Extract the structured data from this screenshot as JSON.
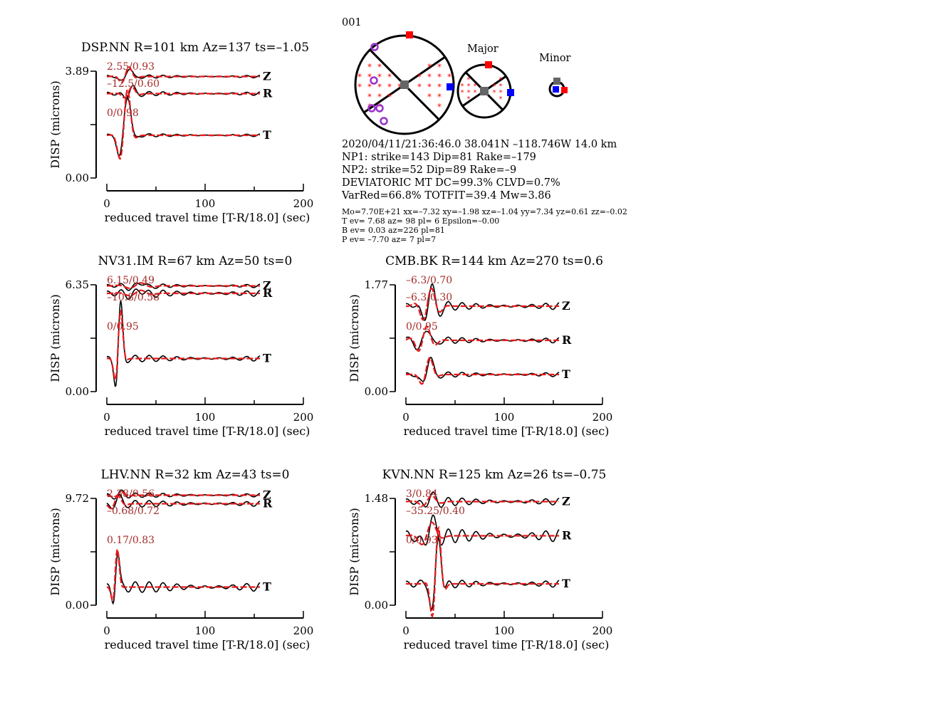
{
  "event_id": "001",
  "beachball": {
    "major_label": "Major",
    "minor_label": "Minor"
  },
  "info": {
    "line1": "2020/04/11/21:36:46.0 38.041N –118.746W 14.0 km",
    "line2": "NP1: strike=143 Dip=81 Rake=–179",
    "line3": "NP2: strike=52 Dip=89 Rake=–9",
    "line4": "DEVIATORIC MT DC=99.3% CLVD=0.7%",
    "line5": "VarRed=66.8% TOTFIT=39.4 Mw=3.86",
    "mt_line1": "Mo=7.70E+21 xx=–7.32 xy=–1.98 xz=–1.04 yy=7.34 yz=0.61 zz=–0.02",
    "mt_line2": "T ev=  7.68 az= 98 pl= 6 Epsilon=–0.00",
    "mt_line3": "B ev=  0.03 az=226 pl=81",
    "mt_line4": "P ev= –7.70 az=  7 pl=7"
  },
  "colors": {
    "synthetic": "#e41a1c",
    "observed": "#000000",
    "fit_text": "#a52a2a",
    "t_axis": "#0000ff",
    "p_axis": "#ff0000",
    "b_axis": "#666666",
    "station_marker": "#9932cc"
  },
  "chart_data": [
    {
      "type": "line",
      "title": "DSP.NN R=101 km Az=137 ts=–1.05",
      "ylabel": "DISP (microns)",
      "xlabel": "reduced travel time [T-R/18.0] (sec)",
      "xlim": [
        0,
        200
      ],
      "x_ticks": [
        "0",
        "100",
        "200"
      ],
      "y_ticks": [
        "0.00",
        "3.89"
      ],
      "series": [
        {
          "name": "Z",
          "fit": "2.55/0.93"
        },
        {
          "name": "R",
          "fit": "–12.5/0.60"
        },
        {
          "name": "T",
          "fit": "0/0.98"
        }
      ]
    },
    {
      "type": "line",
      "title": "NV31.IM R=67 km Az=50 ts=0",
      "ylabel": "DISP (microns)",
      "xlabel": "reduced travel time [T-R/18.0] (sec)",
      "xlim": [
        0,
        200
      ],
      "x_ticks": [
        "0",
        "100",
        "200"
      ],
      "y_ticks": [
        "0.00",
        "6.35"
      ],
      "series": [
        {
          "name": "Z",
          "fit": "6.15/0.49"
        },
        {
          "name": "R",
          "fit": "–10.8/0.58"
        },
        {
          "name": "T",
          "fit": "0/0.95"
        }
      ]
    },
    {
      "type": "line",
      "title": "CMB.BK R=144 km Az=270 ts=0.6",
      "ylabel": "DISP (microns)",
      "xlabel": "reduced travel time [T-R/18.0] (sec)",
      "xlim": [
        0,
        200
      ],
      "x_ticks": [
        "0",
        "100",
        "200"
      ],
      "y_ticks": [
        "0.00",
        "1.77"
      ],
      "series": [
        {
          "name": "Z",
          "fit": "–6.3/0.70"
        },
        {
          "name": "R",
          "fit": "–6.3/0.30"
        },
        {
          "name": "T",
          "fit": "0/0.95"
        }
      ]
    },
    {
      "type": "line",
      "title": "LHV.NN R=32 km Az=43 ts=0",
      "ylabel": "DISP (microns)",
      "xlabel": "reduced travel time [T-R/18.0] (sec)",
      "xlim": [
        0,
        200
      ],
      "x_ticks": [
        "0",
        "100",
        "200"
      ],
      "y_ticks": [
        "0.00",
        "9.72"
      ],
      "series": [
        {
          "name": "Z",
          "fit": "2.38/0.56"
        },
        {
          "name": "R",
          "fit": "–0.68/0.72"
        },
        {
          "name": "T",
          "fit": "0.17/0.83"
        }
      ]
    },
    {
      "type": "line",
      "title": "KVN.NN R=125 km Az=26 ts=–0.75",
      "ylabel": "DISP (microns)",
      "xlabel": "reduced travel time [T-R/18.0] (sec)",
      "xlim": [
        0,
        200
      ],
      "x_ticks": [
        "0",
        "100",
        "200"
      ],
      "y_ticks": [
        "0.00",
        "1.48"
      ],
      "series": [
        {
          "name": "Z",
          "fit": "3/0.84"
        },
        {
          "name": "R",
          "fit": "–35.25/0.40"
        },
        {
          "name": "T",
          "fit": "0/0.93"
        }
      ]
    }
  ]
}
